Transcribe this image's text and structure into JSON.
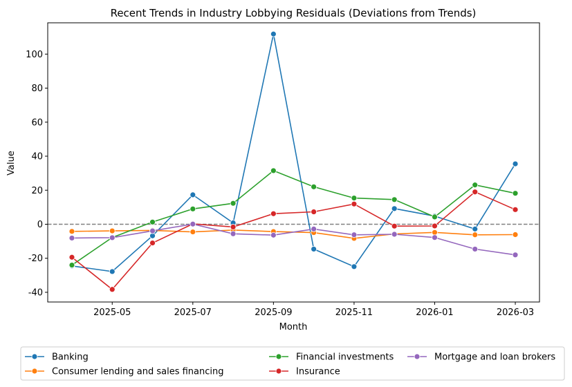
{
  "chart_data": {
    "type": "line",
    "title": "Recent Trends in Industry Lobbying Residuals (Deviations from Trends)",
    "xlabel": "Month",
    "ylabel": "Value",
    "x": [
      "2025-04",
      "2025-05",
      "2025-06",
      "2025-07",
      "2025-08",
      "2025-09",
      "2025-10",
      "2025-11",
      "2025-12",
      "2026-01",
      "2026-02",
      "2026-03"
    ],
    "x_tick_labels": [
      "2025-05",
      "2025-07",
      "2025-09",
      "2025-11",
      "2026-01",
      "2026-03"
    ],
    "y_ticks": [
      -40,
      -20,
      0,
      20,
      40,
      60,
      80,
      100
    ],
    "ylim": [
      -45.7,
      118.4
    ],
    "reference_line": 0,
    "grid": false,
    "legend_position": "bottom",
    "series": [
      {
        "name": "Banking",
        "color": "#1f77b4",
        "values": [
          -24.5,
          -27.8,
          -6.8,
          17.3,
          0.8,
          111.8,
          -14.6,
          -24.9,
          9.2,
          4.8,
          -2.8,
          35.5
        ]
      },
      {
        "name": "Consumer lending and sales financing",
        "color": "#ff7f0e",
        "values": [
          -4.2,
          -3.9,
          -3.6,
          -4.5,
          -3.4,
          -4.3,
          -4.9,
          -8.3,
          -5.7,
          -4.8,
          -6.2,
          -6.1
        ]
      },
      {
        "name": "Financial investments",
        "color": "#2ca02c",
        "values": [
          -24.0,
          -7.8,
          1.3,
          9.0,
          12.3,
          31.5,
          22.0,
          15.4,
          14.5,
          4.3,
          23.1,
          18.2
        ]
      },
      {
        "name": "Insurance",
        "color": "#d62728",
        "values": [
          -19.4,
          -38.3,
          -11.0,
          0.2,
          -1.6,
          6.2,
          7.3,
          11.9,
          -1.1,
          -1.0,
          19.0,
          8.6
        ]
      },
      {
        "name": "Mortgage and loan brokers",
        "color": "#9467bd",
        "values": [
          -8.1,
          -7.9,
          -3.9,
          0.1,
          -5.6,
          -6.4,
          -2.8,
          -6.2,
          -5.9,
          -7.8,
          -14.6,
          -18.0
        ]
      }
    ]
  }
}
